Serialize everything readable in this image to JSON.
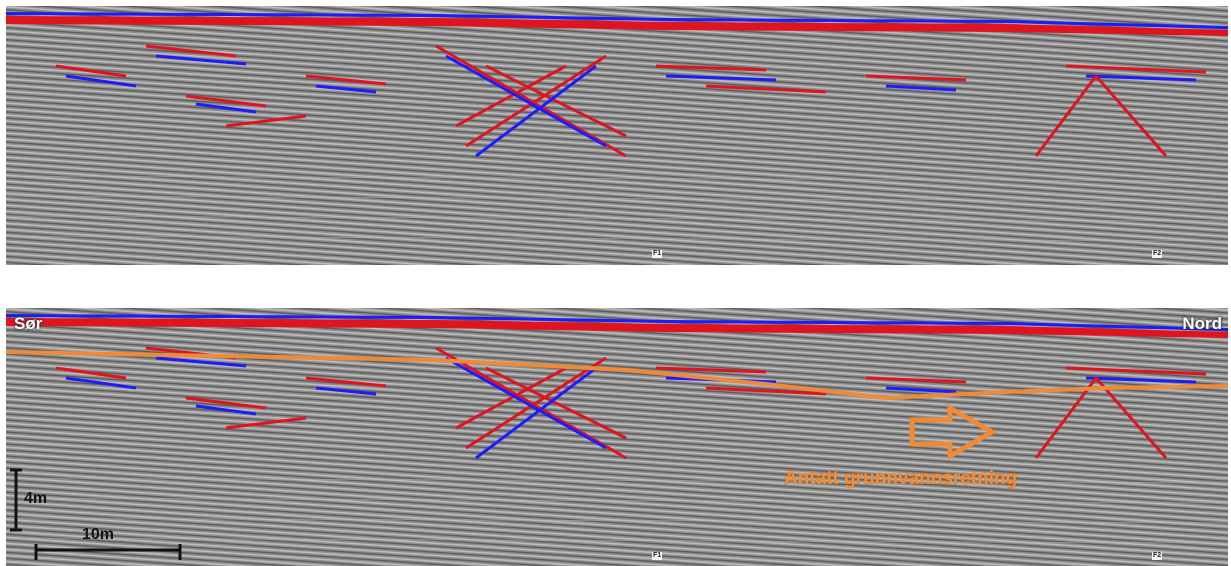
{
  "panels": [
    {
      "name": "top",
      "markers": [
        "F1",
        "F2"
      ]
    },
    {
      "name": "bottom",
      "markers": [
        "F1",
        "F2"
      ],
      "labels": {
        "south": "Sør",
        "north": "Nord",
        "groundwater_direction": "Antatt grunnvannsretning"
      },
      "scale": {
        "vertical": "4m",
        "horizontal": "10m"
      }
    }
  ],
  "colors": {
    "background_gray": "#8f8f8f",
    "positive_reflection": "#e0141e",
    "negative_reflection": "#1c1cff",
    "annotation": "#f08a36"
  }
}
